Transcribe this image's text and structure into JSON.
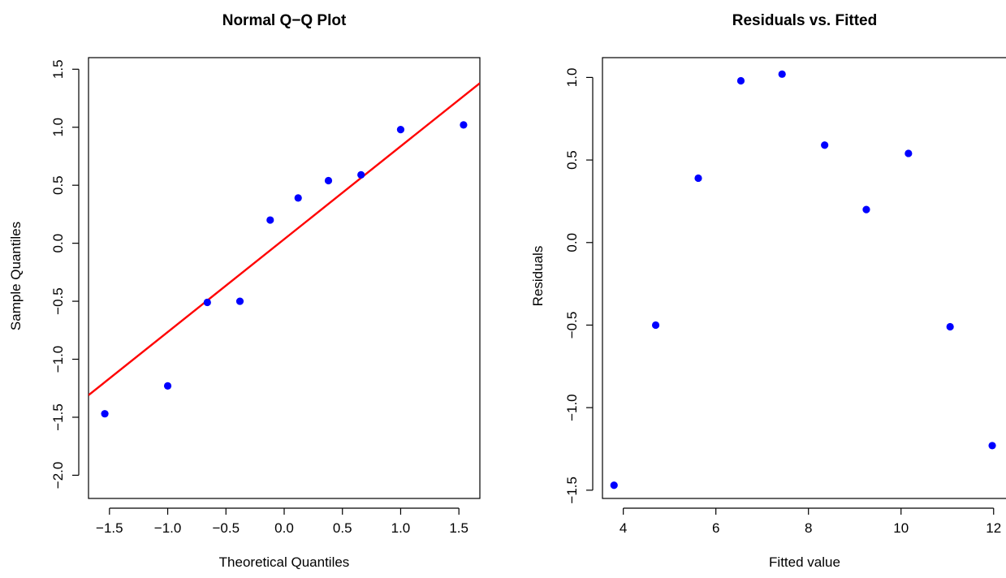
{
  "chart_data": [
    {
      "type": "scatter",
      "title": "Normal Q−Q Plot",
      "xlabel": "Theoretical Quantiles",
      "ylabel": "Sample Quantiles",
      "xlim": [
        -1.68,
        1.68
      ],
      "ylim": [
        -2.2,
        1.6
      ],
      "xticks": [
        -1.5,
        -1.0,
        -0.5,
        0.0,
        0.5,
        1.0,
        1.5
      ],
      "xtick_labels": [
        "−1.5",
        "−1.0",
        "−0.5",
        "0.0",
        "0.5",
        "1.0",
        "1.5"
      ],
      "yticks": [
        -2.0,
        -1.5,
        -1.0,
        -0.5,
        0.0,
        0.5,
        1.0,
        1.5
      ],
      "ytick_labels": [
        "−2.0",
        "−1.5",
        "−1.0",
        "−0.5",
        "0.0",
        "0.5",
        "1.0",
        "1.5"
      ],
      "point_color": "#0000ff",
      "line_color": "#ff0000",
      "series": [
        {
          "x": [
            -1.54,
            -1.0,
            -0.66,
            -0.38,
            -0.12,
            0.12,
            0.38,
            0.66,
            1.0,
            1.54
          ],
          "y": [
            -1.47,
            -1.23,
            -0.51,
            -0.5,
            0.2,
            0.39,
            0.54,
            0.59,
            0.98,
            1.02
          ]
        }
      ],
      "reference_line": {
        "x": [
          -1.68,
          1.68
        ],
        "y": [
          -1.31,
          1.38
        ]
      }
    },
    {
      "type": "scatter",
      "title": "Residuals vs. Fitted",
      "xlabel": "Fitted value",
      "ylabel": "Residuals",
      "xlim": [
        3.55,
        12.25
      ],
      "ylim": [
        -1.55,
        1.12
      ],
      "xticks": [
        4,
        6,
        8,
        10,
        12
      ],
      "xtick_labels": [
        "4",
        "6",
        "8",
        "10",
        "12"
      ],
      "yticks": [
        -1.5,
        -1.0,
        -0.5,
        0.0,
        0.5,
        1.0
      ],
      "ytick_labels": [
        "−1.5",
        "−1.0",
        "−0.5",
        "0.0",
        "0.5",
        "1.0"
      ],
      "point_color": "#0000ff",
      "series": [
        {
          "x": [
            3.8,
            4.7,
            5.62,
            6.54,
            7.43,
            8.35,
            9.25,
            10.16,
            11.06,
            11.97
          ],
          "y": [
            -1.47,
            -0.5,
            0.39,
            0.98,
            1.02,
            0.59,
            0.2,
            0.54,
            -0.51,
            -1.23
          ]
        }
      ]
    }
  ]
}
